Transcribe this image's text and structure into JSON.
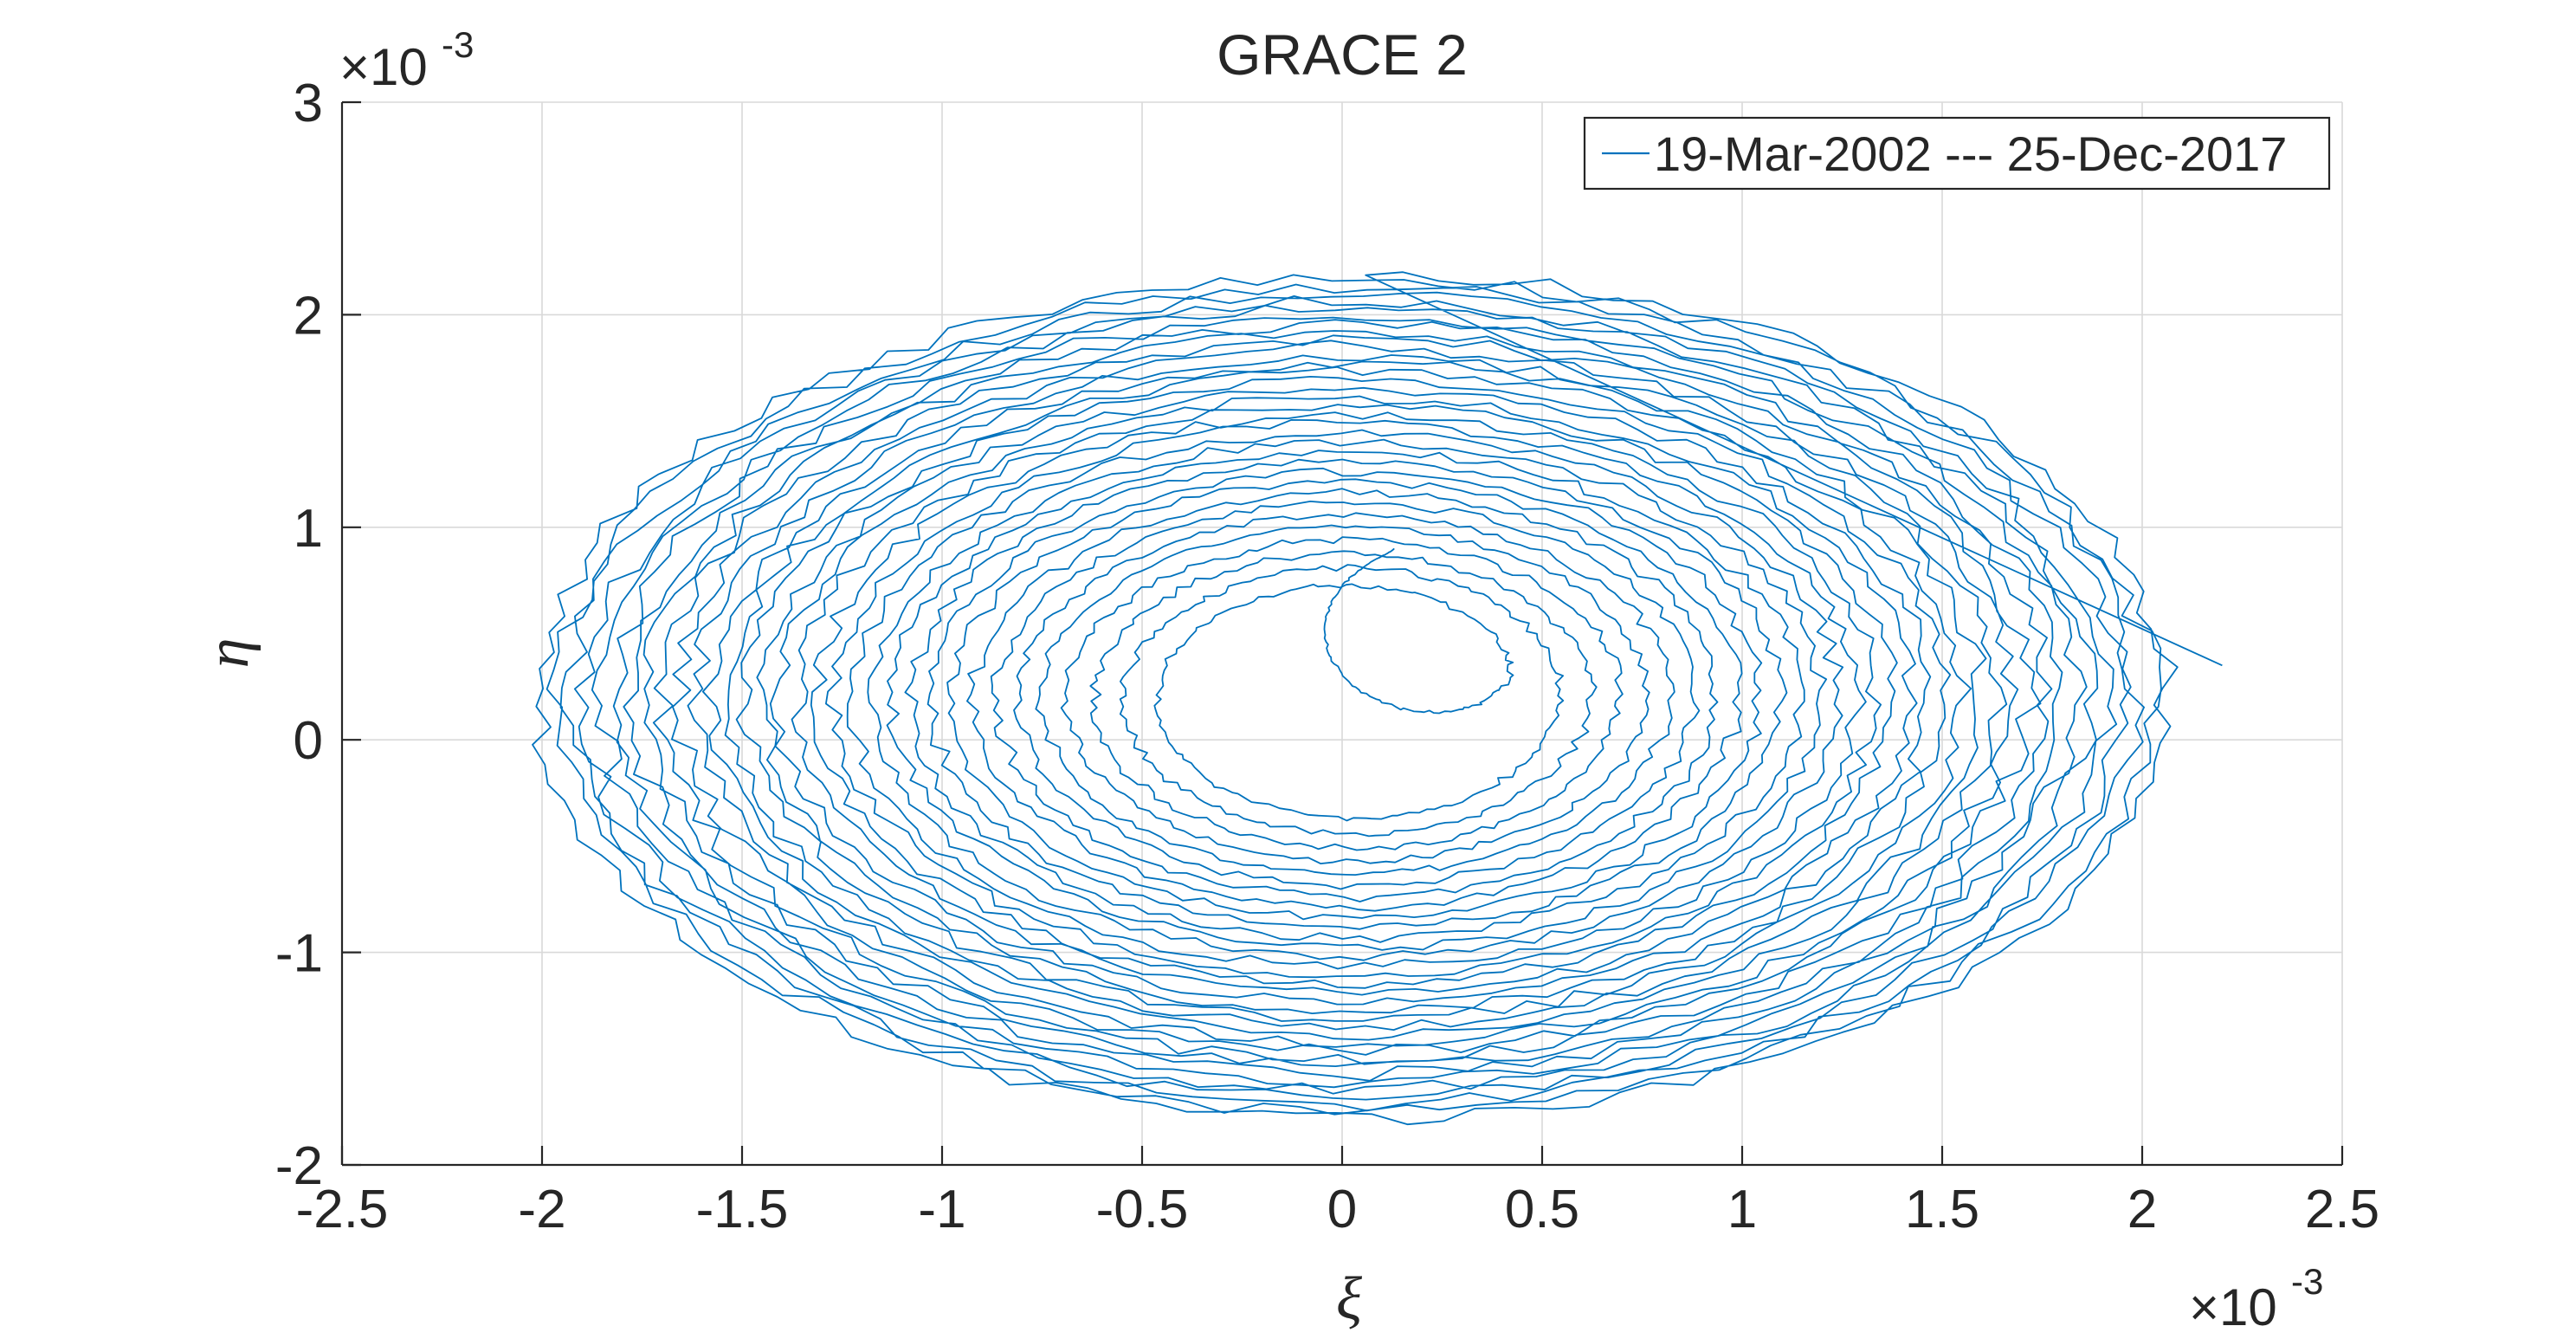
{
  "chart_data": {
    "type": "line",
    "title": "GRACE 2",
    "xlabel": "ξ",
    "ylabel": "η",
    "x_exponent_label": "×10",
    "x_exponent_power": "-3",
    "y_exponent_label": "×10",
    "y_exponent_power": "-3",
    "xlim": [
      -0.0025,
      0.0025
    ],
    "ylim": [
      -0.002,
      0.003
    ],
    "x_ticks": [
      -0.0025,
      -0.002,
      -0.0015,
      -0.001,
      -0.0005,
      0,
      0.0005,
      0.001,
      0.0015,
      0.002,
      0.0025
    ],
    "x_tick_labels": [
      "-2.5",
      "-2",
      "-1.5",
      "-1",
      "-0.5",
      "0",
      "0.5",
      "1",
      "1.5",
      "2",
      "2.5"
    ],
    "y_ticks": [
      -0.002,
      -0.001,
      0,
      0.001,
      0.002,
      0.003
    ],
    "y_tick_labels": [
      "-2",
      "-1",
      "0",
      "1",
      "2",
      "3"
    ],
    "grid": true,
    "legend_position": "top-right",
    "series": [
      {
        "name": "19-Mar-2002 --- 25-Dec-2017",
        "color": "#0072BD",
        "shape": "spiral",
        "center_x": 2e-05,
        "center_y": 0.0002,
        "inner_radius_x": 0.00032,
        "inner_radius_y": 0.0004,
        "outer_radius_x": 0.00205,
        "outer_radius_y": 0.002,
        "start_x": 0.00013,
        "start_y": 0.0009,
        "end_x": 0.0022,
        "end_y": 0.00035,
        "turns": 34
      }
    ]
  }
}
